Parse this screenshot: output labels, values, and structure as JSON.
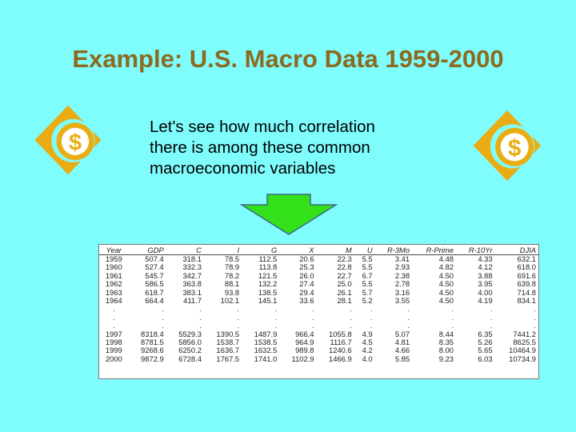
{
  "title": "Example: U.S. Macro Data 1959-2000",
  "body_lines": [
    "Let's see how much correlation",
    "there is among these common",
    "macroeconomic variables"
  ],
  "colors": {
    "background": "#7ffcfc",
    "title": "#8c6a1f",
    "icon_gold": "#e9ad13",
    "arrow_green": "#33e01a"
  },
  "icons": [
    "dollar-coin-eye-icon",
    "down-arrow-icon"
  ],
  "table": {
    "headers": [
      "Year",
      "GDP",
      "C",
      "I",
      "G",
      "X",
      "M",
      "U",
      "R-3Mo",
      "R-Prime",
      "R-10Yr",
      "DJIA"
    ],
    "rows": [
      [
        "1959",
        "507.4",
        "318.1",
        "78.5",
        "112.5",
        "20.6",
        "22.3",
        "5.5",
        "3.41",
        "4.48",
        "4.33",
        "632.1"
      ],
      [
        "1960",
        "527.4",
        "332.3",
        "78.9",
        "113.8",
        "25.3",
        "22.8",
        "5.5",
        "2.93",
        "4.82",
        "4.12",
        "618.0"
      ],
      [
        "1961",
        "545.7",
        "342.7",
        "78.2",
        "121.5",
        "26.0",
        "22.7",
        "6.7",
        "2.38",
        "4.50",
        "3.88",
        "691.6"
      ],
      [
        "1962",
        "586.5",
        "363.8",
        "88.1",
        "132.2",
        "27.4",
        "25.0",
        "5.5",
        "2.78",
        "4.50",
        "3.95",
        "639.8"
      ],
      [
        "1963",
        "618.7",
        "383.1",
        "93.8",
        "138.5",
        "29.4",
        "26.1",
        "5.7",
        "3.16",
        "4.50",
        "4.00",
        "714.8"
      ],
      [
        "1964",
        "664.4",
        "411.7",
        "102.1",
        "145.1",
        "33.6",
        "28.1",
        "5.2",
        "3.55",
        "4.50",
        "4.19",
        "834.1"
      ],
      [
        ".",
        ".",
        ".",
        ".",
        ".",
        ".",
        ".",
        ".",
        ".",
        ".",
        ".",
        "."
      ],
      [
        ".",
        ".",
        ".",
        ".",
        ".",
        ".",
        ".",
        ".",
        ".",
        ".",
        ".",
        "."
      ],
      [
        ".",
        ".",
        ".",
        ".",
        ".",
        ".",
        ".",
        ".",
        ".",
        ".",
        ".",
        "."
      ],
      [
        "1997",
        "8318.4",
        "5529.3",
        "1390.5",
        "1487.9",
        "966.4",
        "1055.8",
        "4.9",
        "5.07",
        "8.44",
        "6.35",
        "7441.2"
      ],
      [
        "1998",
        "8781.5",
        "5856.0",
        "1538.7",
        "1538.5",
        "964.9",
        "1116.7",
        "4.5",
        "4.81",
        "8.35",
        "5.26",
        "8625.5"
      ],
      [
        "1999",
        "9268.6",
        "6250.2",
        "1636.7",
        "1632.5",
        "989.8",
        "1240.6",
        "4.2",
        "4.66",
        "8.00",
        "5.65",
        "10464.9"
      ],
      [
        "2000",
        "9872.9",
        "6728.4",
        "1767.5",
        "1741.0",
        "1102.9",
        "1466.9",
        "4.0",
        "5.85",
        "9.23",
        "6.03",
        "10734.9"
      ]
    ]
  }
}
